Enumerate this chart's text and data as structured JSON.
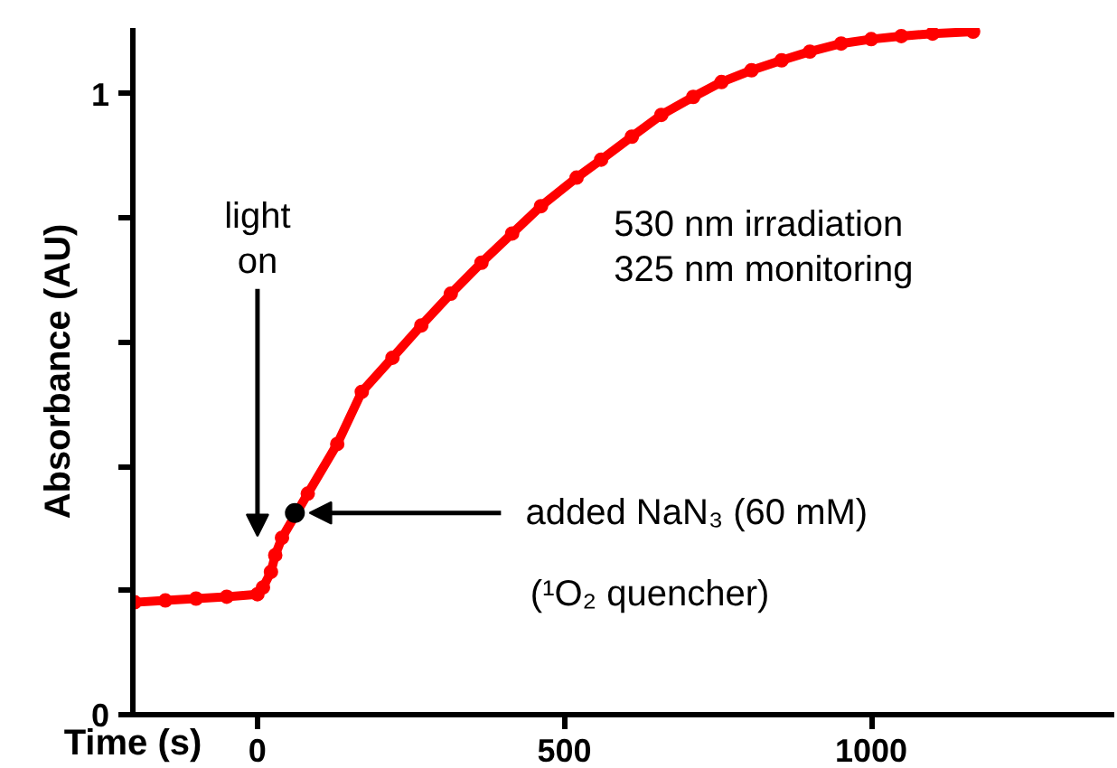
{
  "chart_data": {
    "type": "line",
    "xlabel": "Time (s)",
    "ylabel": "Absorbance (AU)",
    "xlim": [
      -203,
      1396
    ],
    "ylim": [
      0,
      1.106
    ],
    "xticks": [
      0,
      500,
      1000
    ],
    "yticks": [
      0,
      {
        "value": 0.2,
        "label": null
      },
      {
        "value": 0.4,
        "label": null
      },
      {
        "value": 0.6,
        "label": null
      },
      {
        "value": 0.8,
        "label": null
      },
      1
    ],
    "grid": false,
    "marker": "circle",
    "line_style": "solid",
    "series": [
      {
        "color": "#ff0000",
        "x": [
          -200,
          -150,
          -100,
          -50,
          0,
          9,
          22,
          29,
          40,
          82,
          130,
          170,
          220,
          267,
          315,
          365,
          415,
          462,
          520,
          560,
          610,
          658,
          710,
          756,
          805,
          854,
          900,
          951,
          1000,
          1049,
          1100,
          1166
        ],
        "values": [
          0.181,
          0.184,
          0.187,
          0.19,
          0.194,
          0.205,
          0.23,
          0.257,
          0.285,
          0.356,
          0.436,
          0.52,
          0.575,
          0.627,
          0.678,
          0.728,
          0.775,
          0.819,
          0.865,
          0.894,
          0.931,
          0.966,
          0.995,
          1.019,
          1.038,
          1.054,
          1.068,
          1.081,
          1.088,
          1.093,
          1.097,
          1.1
        ]
      },
      {
        "type": "scatter",
        "color": "#000000",
        "x": [
          61
        ],
        "values": [
          0.325
        ]
      }
    ],
    "annotations": [
      "light\non",
      {
        "text": "added NaN₃ (60 mM)",
        "x": 61,
        "y": 0.325
      },
      "(¹O₂ quencher)",
      "530 nm irradiation\n325 nm monitoring"
    ]
  }
}
